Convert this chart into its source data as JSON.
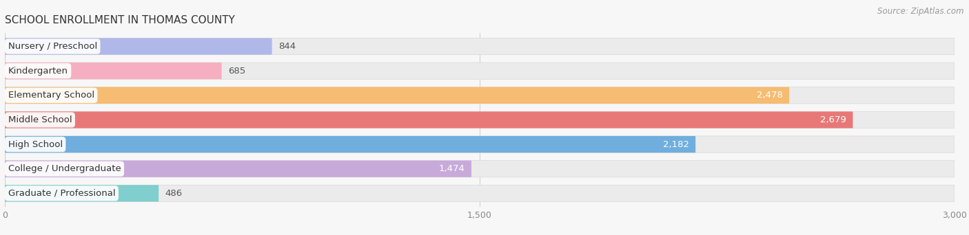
{
  "title": "SCHOOL ENROLLMENT IN THOMAS COUNTY",
  "source": "Source: ZipAtlas.com",
  "categories": [
    "Nursery / Preschool",
    "Kindergarten",
    "Elementary School",
    "Middle School",
    "High School",
    "College / Undergraduate",
    "Graduate / Professional"
  ],
  "values": [
    844,
    685,
    2478,
    2679,
    2182,
    1474,
    486
  ],
  "colors": [
    "#b0b8ea",
    "#f5afc0",
    "#f5bc72",
    "#e87878",
    "#6faedd",
    "#c8aada",
    "#80cece"
  ],
  "xlim": [
    0,
    3000
  ],
  "xtick_vals": [
    0,
    1500,
    3000
  ],
  "xtick_labels": [
    "0",
    "1,500",
    "3,000"
  ],
  "background_color": "#f7f7f7",
  "bar_bg_color": "#ebebeb",
  "bar_height": 0.68,
  "bar_gap": 0.32,
  "title_fontsize": 11,
  "label_fontsize": 9.5,
  "value_fontsize": 9.5,
  "source_fontsize": 8.5,
  "value_threshold_inside": 2700
}
